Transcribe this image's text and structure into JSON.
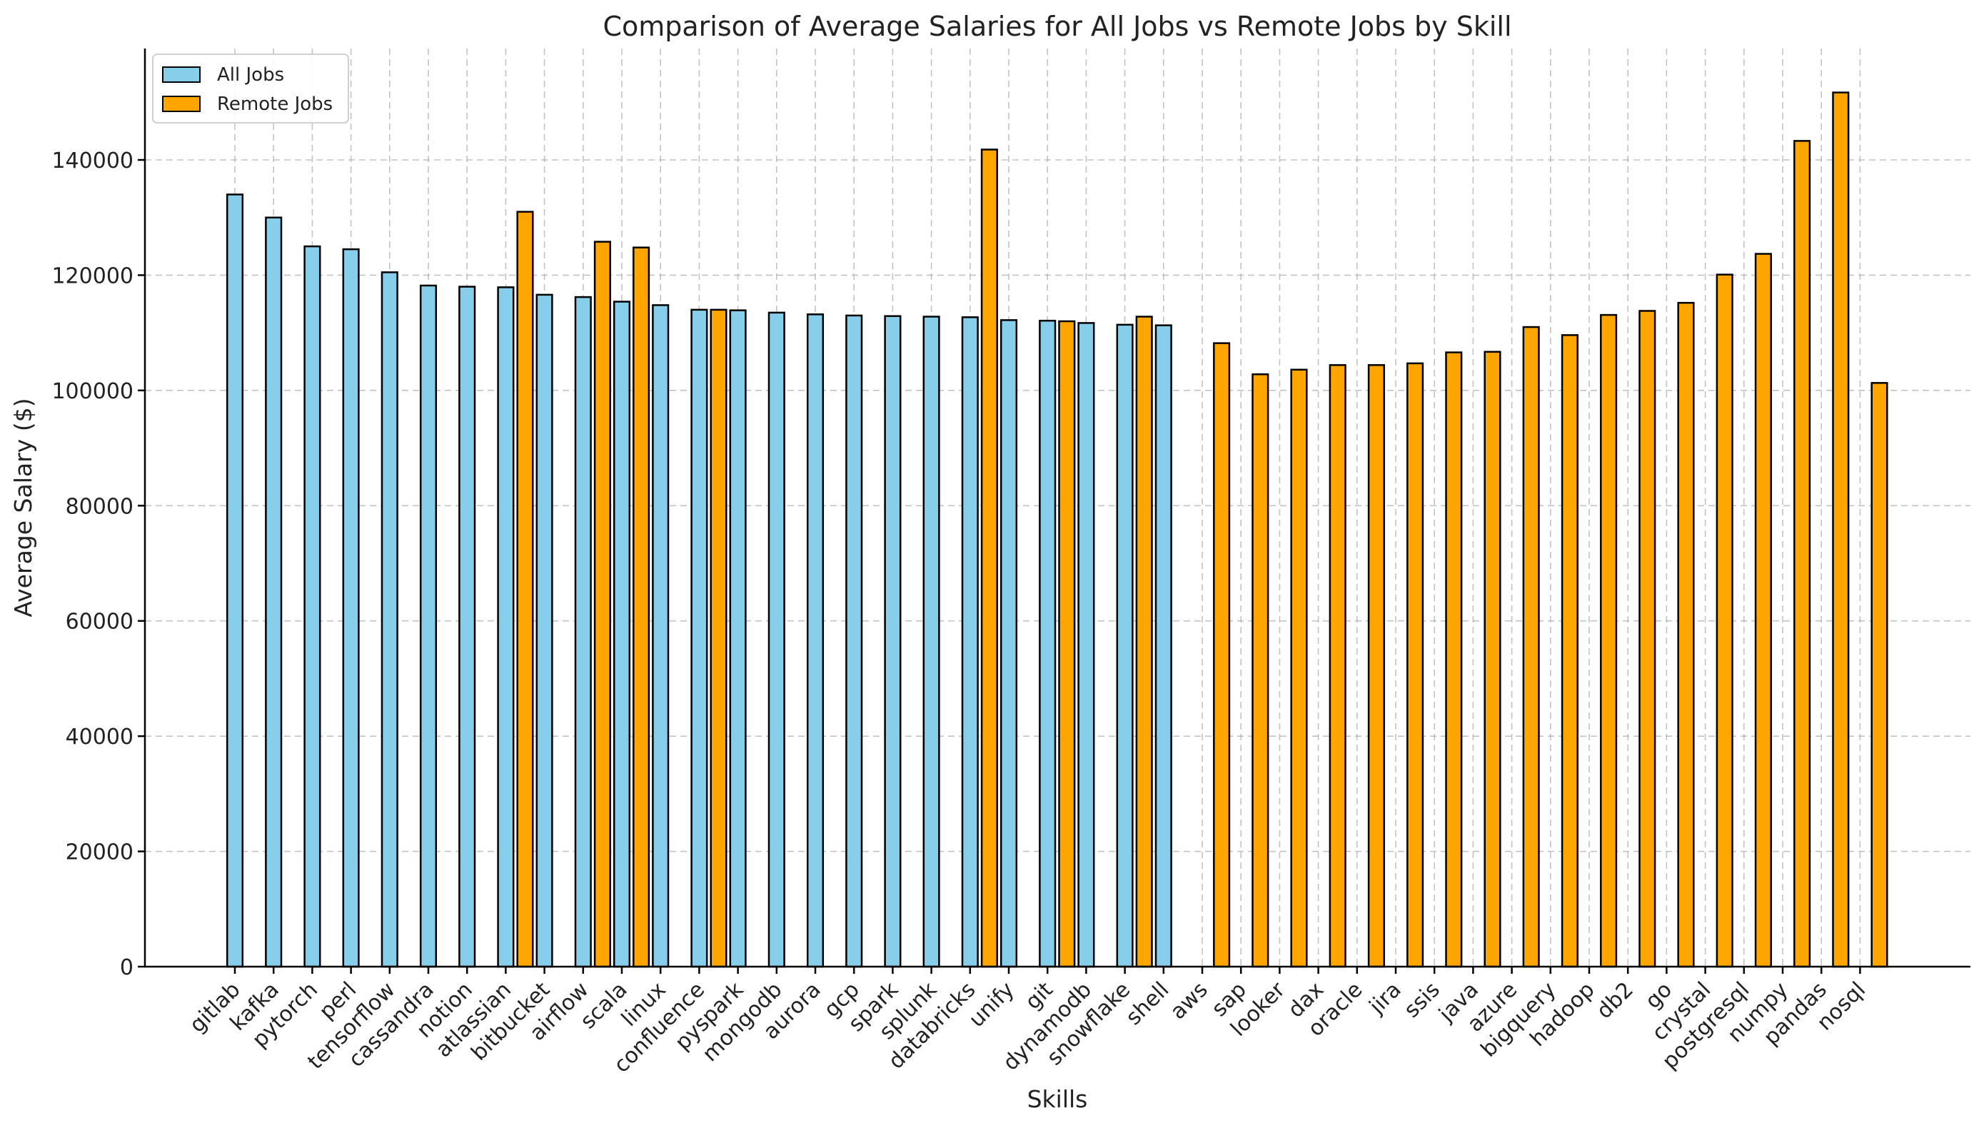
{
  "chart_data": {
    "type": "bar",
    "title": "Comparison of Average Salaries for All Jobs vs Remote Jobs by Skill",
    "xlabel": "Skills",
    "ylabel": "Average Salary ($)",
    "ylim": [
      0,
      160000
    ],
    "yticks": [
      0,
      20000,
      40000,
      60000,
      80000,
      100000,
      120000,
      140000
    ],
    "grid": true,
    "legend_position": "top-left",
    "colors": {
      "all_jobs": "#87ceeb",
      "remote_jobs": "#ffa500"
    },
    "categories": [
      "gitlab",
      "kafka",
      "pytorch",
      "perl",
      "tensorflow",
      "cassandra",
      "notion",
      "atlassian",
      "bitbucket",
      "airflow",
      "scala",
      "linux",
      "confluence",
      "pyspark",
      "mongodb",
      "aurora",
      "gcp",
      "spark",
      "splunk",
      "databricks",
      "unify",
      "git",
      "dynamodb",
      "snowflake",
      "shell",
      "aws",
      "sap",
      "looker",
      "dax",
      "oracle",
      "jira",
      "ssis",
      "java",
      "azure",
      "bigquery",
      "hadoop",
      "db2",
      "go",
      "crystal",
      "postgresql",
      "numpy",
      "pandas",
      "nosql"
    ],
    "series": [
      {
        "name": "All Jobs",
        "color": "#87ceeb",
        "points": [
          {
            "x": 0,
            "y": 134000
          },
          {
            "x": 1,
            "y": 130000
          },
          {
            "x": 2,
            "y": 125000
          },
          {
            "x": 3,
            "y": 124500
          },
          {
            "x": 4,
            "y": 120500
          },
          {
            "x": 5,
            "y": 118200
          },
          {
            "x": 6,
            "y": 118000
          },
          {
            "x": 7,
            "y": 117900
          },
          {
            "x": 8,
            "y": 116600
          },
          {
            "x": 9,
            "y": 116200
          },
          {
            "x": 10,
            "y": 115400
          },
          {
            "x": 11,
            "y": 114800
          },
          {
            "x": 12,
            "y": 114000
          },
          {
            "x": 13,
            "y": 113900
          },
          {
            "x": 14,
            "y": 113500
          },
          {
            "x": 15,
            "y": 113200
          },
          {
            "x": 16,
            "y": 113000
          },
          {
            "x": 17,
            "y": 112900
          },
          {
            "x": 18,
            "y": 112800
          },
          {
            "x": 19,
            "y": 112700
          },
          {
            "x": 20,
            "y": 112200
          },
          {
            "x": 21,
            "y": 112100
          },
          {
            "x": 22,
            "y": 111700
          },
          {
            "x": 23,
            "y": 111400
          },
          {
            "x": 24,
            "y": 111300
          }
        ]
      },
      {
        "name": "Remote Jobs",
        "color": "#ffa500",
        "points": [
          {
            "x": 7.5,
            "y": 131000
          },
          {
            "x": 9.5,
            "y": 125800
          },
          {
            "x": 10.5,
            "y": 124800
          },
          {
            "x": 12.5,
            "y": 114000
          },
          {
            "x": 19.5,
            "y": 141800
          },
          {
            "x": 21.5,
            "y": 112000
          },
          {
            "x": 23.5,
            "y": 112800
          },
          {
            "x": 25.5,
            "y": 108200
          },
          {
            "x": 26.5,
            "y": 102800
          },
          {
            "x": 27.5,
            "y": 103600
          },
          {
            "x": 28.5,
            "y": 104400
          },
          {
            "x": 29.5,
            "y": 104400
          },
          {
            "x": 30.5,
            "y": 104700
          },
          {
            "x": 31.5,
            "y": 106600
          },
          {
            "x": 32.5,
            "y": 106700
          },
          {
            "x": 33.5,
            "y": 111000
          },
          {
            "x": 34.5,
            "y": 109600
          },
          {
            "x": 35.5,
            "y": 113100
          },
          {
            "x": 36.5,
            "y": 113800
          },
          {
            "x": 37.5,
            "y": 115200
          },
          {
            "x": 38.5,
            "y": 120100
          },
          {
            "x": 39.5,
            "y": 123700
          },
          {
            "x": 40.5,
            "y": 143300
          },
          {
            "x": 41.5,
            "y": 151700
          },
          {
            "x": 42.5,
            "y": 101300
          }
        ]
      }
    ]
  }
}
